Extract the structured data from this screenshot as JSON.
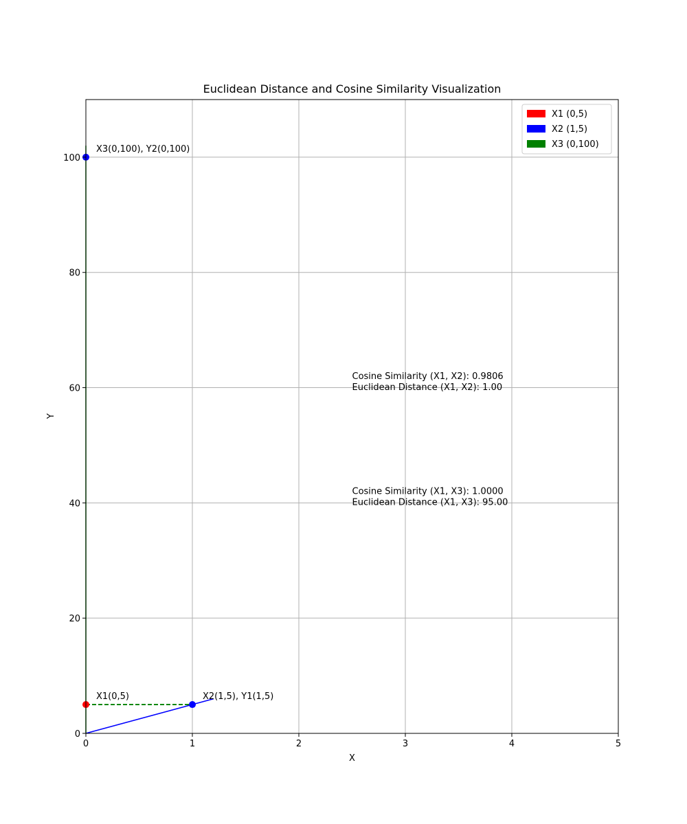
{
  "chart_data": {
    "type": "scatter",
    "title": "Euclidean Distance and Cosine Similarity Visualization",
    "xlabel": "X",
    "ylabel": "Y",
    "xlim": [
      0,
      5
    ],
    "ylim": [
      0,
      110
    ],
    "xticks": [
      0,
      1,
      2,
      3,
      4,
      5
    ],
    "yticks": [
      0,
      20,
      40,
      60,
      80,
      100
    ],
    "grid": true,
    "legend_position": "top-right",
    "legend": [
      {
        "label": "X1 (0,5)",
        "color": "#ff0000"
      },
      {
        "label": "X2 (1,5)",
        "color": "#0000ff"
      },
      {
        "label": "X3 (0,100)",
        "color": "#008000"
      }
    ],
    "vectors": [
      {
        "from": [
          0,
          0
        ],
        "to": [
          1.2,
          6
        ],
        "color": "#0000ff"
      },
      {
        "from": [
          0,
          0
        ],
        "to": [
          0,
          102
        ],
        "color": "#008000"
      }
    ],
    "points": [
      {
        "x": 0,
        "y": 5,
        "color": "#ff0000",
        "label": "X1(0,5)"
      },
      {
        "x": 1,
        "y": 5,
        "color": "#0000ff",
        "label": "X2(1,5), Y1(1,5)"
      },
      {
        "x": 0,
        "y": 100,
        "color": "#0000ff",
        "label": "X3(0,100), Y2(0,100)"
      }
    ],
    "distance_segments": [
      {
        "from": [
          0,
          5
        ],
        "to": [
          1,
          5
        ],
        "color": "#008000",
        "style": "dashed"
      }
    ],
    "annotations": [
      {
        "x": 2.5,
        "y": 62,
        "lines": [
          "Cosine Similarity (X1, X2): 0.9806",
          "Euclidean Distance (X1, X2): 1.00"
        ]
      },
      {
        "x": 2.5,
        "y": 42,
        "lines": [
          "Cosine Similarity (X1, X3): 1.0000",
          "Euclidean Distance (X1, X3): 95.00"
        ]
      }
    ]
  }
}
